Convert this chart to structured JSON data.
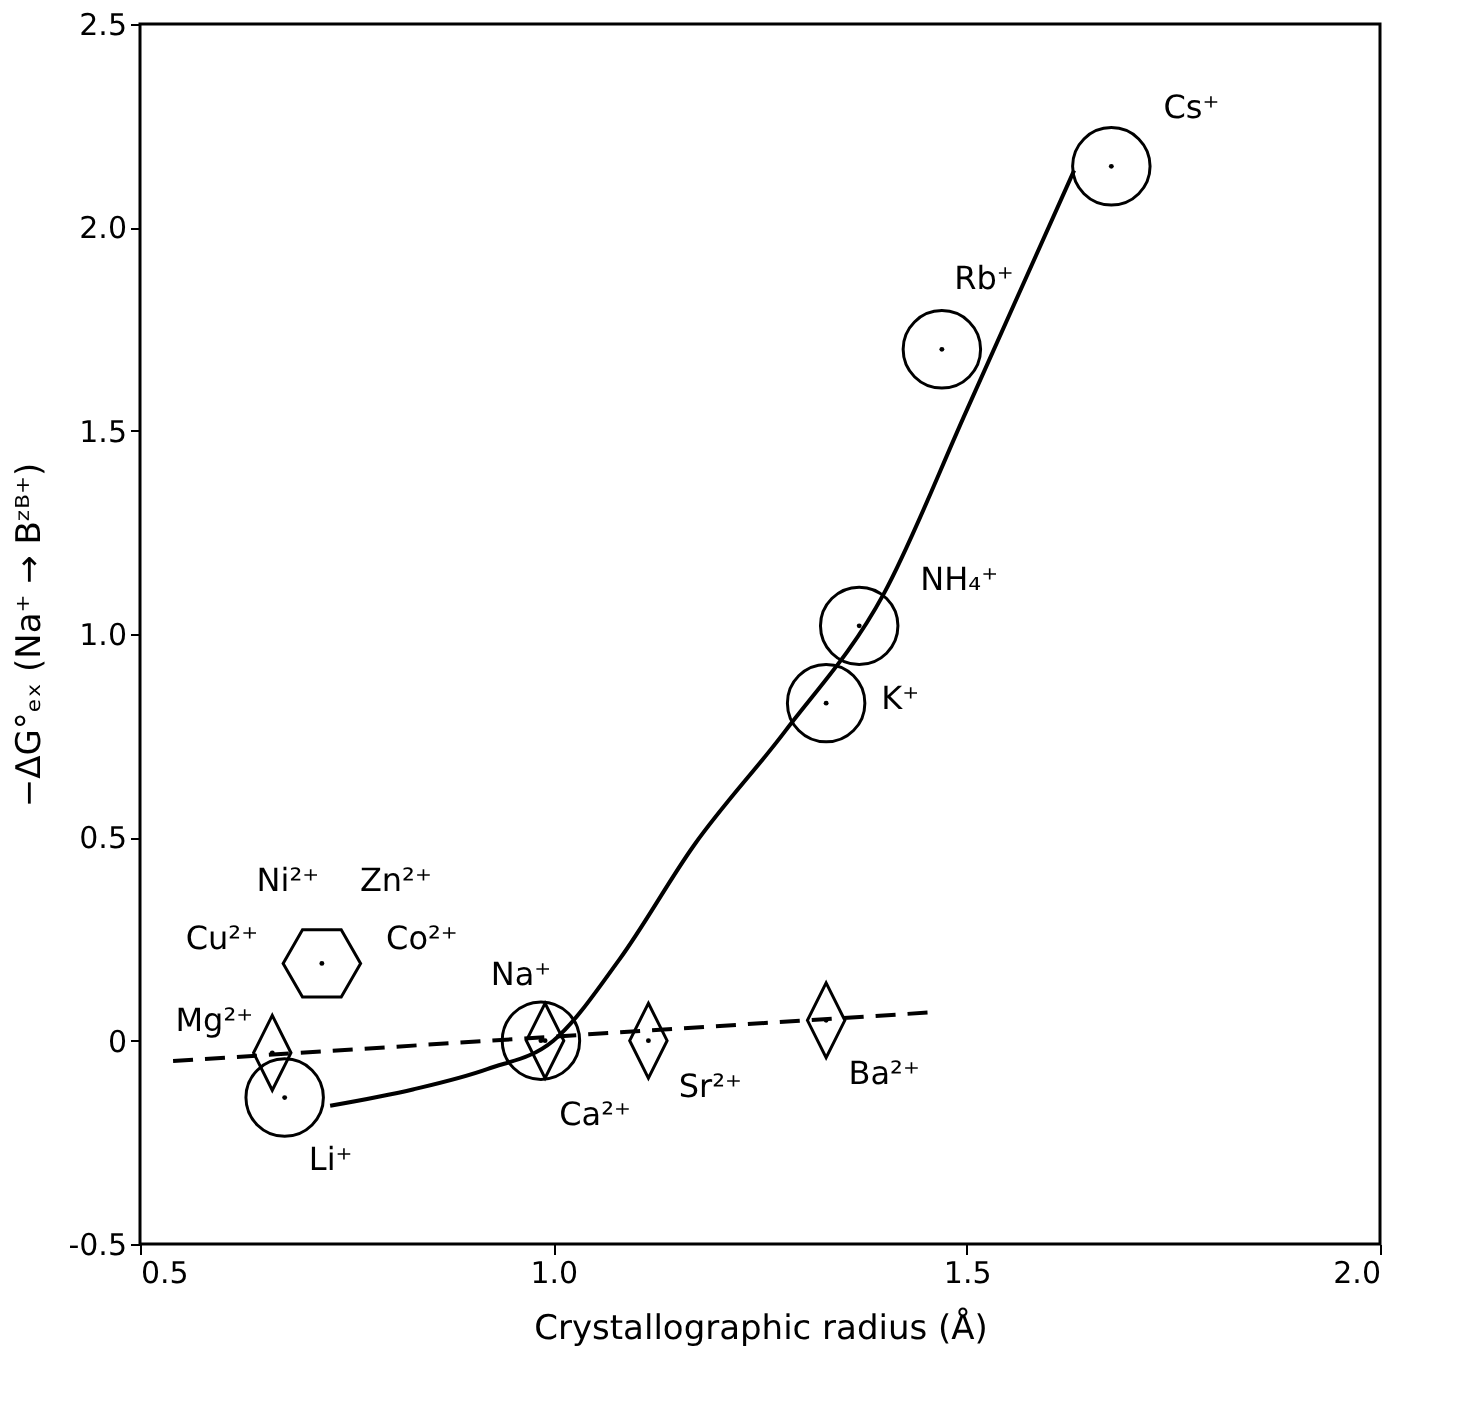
{
  "chart_data": {
    "type": "scatter",
    "xlabel": "Crystallographic radius (Å)",
    "ylabel": "−ΔG°ₑₓ (Na⁺ → Bᶻᴮ⁺)",
    "xlim": [
      0.5,
      2.0
    ],
    "xticks": [
      0.5,
      {
        "value": 1,
        "label": "1.0"
      },
      1.5,
      {
        "value": 2,
        "label": "2.0"
      }
    ],
    "ylim": [
      -0.5,
      2.5
    ],
    "yticks": [
      -0.5,
      0,
      0.5,
      {
        "value": 1,
        "label": "1.0"
      },
      1.5,
      {
        "value": 2,
        "label": "2.0"
      },
      2.5
    ],
    "grid": false,
    "series": [
      {
        "type": "line",
        "color": "#000000",
        "marker": "none",
        "line_style": "solid",
        "x": [
          0.73,
          0.83,
          0.92,
          1.0,
          1.08,
          1.17,
          1.28,
          1.4,
          1.5,
          1.63
        ],
        "values": [
          -0.16,
          -0.12,
          -0.07,
          0.0,
          0.2,
          0.48,
          0.76,
          1.1,
          1.55,
          2.14
        ]
      },
      {
        "type": "line",
        "color": "#000000",
        "marker": "none",
        "line_style": "dashed",
        "x": [
          0.54,
          1.46
        ],
        "values": [
          -0.05,
          0.07
        ]
      },
      {
        "color": "#000000",
        "marker": "circle",
        "x": [
          0.675,
          0.985,
          1.33,
          1.37,
          1.47,
          1.675
        ],
        "values": [
          -0.14,
          0.0,
          0.83,
          1.02,
          1.7,
          2.15
        ]
      },
      {
        "color": "#000000",
        "marker": "diamond",
        "x": [
          0.66,
          0.99,
          1.115,
          1.33
        ],
        "values": [
          -0.03,
          0.0,
          0.0,
          0.05
        ]
      },
      {
        "color": "#000000",
        "x": [
          0.72
        ],
        "values": [
          0.19
        ]
      }
    ],
    "annotations": [
      {
        "text": "Cs⁺",
        "x": 1.675,
        "y": 2.15
      },
      {
        "text": "Rb⁺",
        "x": 1.47,
        "y": 1.7
      },
      {
        "text": "NH₄⁺",
        "x": 1.37,
        "y": 1.02
      },
      {
        "text": "K⁺",
        "x": 1.33,
        "y": 0.83
      },
      {
        "text": "Na⁺",
        "x": 0.985,
        "y": 0.0
      },
      {
        "text": "Li⁺",
        "x": 0.675,
        "y": -0.14
      },
      {
        "text": "Mg²⁺",
        "x": 0.66,
        "y": -0.03
      },
      {
        "text": "Cu²⁺",
        "x": 0.72,
        "y": 0.19
      },
      {
        "text": "Ni²⁺",
        "x": 0.72,
        "y": 0.19
      },
      {
        "text": "Zn²⁺",
        "x": 0.72,
        "y": 0.19
      },
      {
        "text": "Co²⁺",
        "x": 0.72,
        "y": 0.19
      },
      {
        "text": "Ca²⁺",
        "x": 0.99,
        "y": 0.0
      },
      {
        "text": "Sr²⁺",
        "x": 1.115,
        "y": 0.0
      },
      {
        "text": "Ba²⁺",
        "x": 1.33,
        "y": 0.05
      }
    ]
  }
}
